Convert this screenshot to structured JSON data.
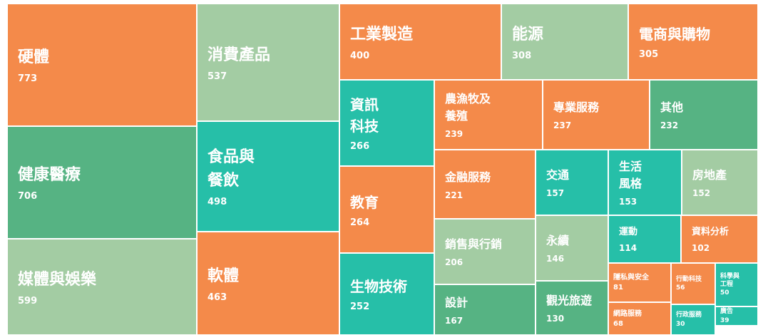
{
  "chart_data": {
    "type": "treemap",
    "categories": [
      "硬體",
      "健康醫療",
      "媒體與娛樂",
      "消費產品",
      "食品與餐飲",
      "軟體",
      "工業製造",
      "能源",
      "電商與購物",
      "資訊科技",
      "教育",
      "生物技術",
      "農漁牧及養殖",
      "專業服務",
      "其他",
      "金融服務",
      "銷售與行銷",
      "設計",
      "交通",
      "永續",
      "觀光旅遊",
      "生活風格",
      "房地產",
      "運動",
      "資料分析",
      "隱私與安全",
      "網路服務",
      "行動科技",
      "科學與工程",
      "行政服務",
      "廣告"
    ],
    "values": [
      773,
      706,
      599,
      537,
      498,
      463,
      400,
      308,
      305,
      266,
      264,
      252,
      239,
      237,
      232,
      221,
      206,
      167,
      157,
      146,
      130,
      153,
      152,
      114,
      102,
      81,
      68,
      56,
      50,
      30,
      39
    ],
    "colors": [
      "#f48a4a",
      "#56b383",
      "#a3cca3",
      "#a3cca3",
      "#26bfa8",
      "#f48a4a",
      "#f48a4a",
      "#a3cca3",
      "#f48a4a",
      "#26bfa8",
      "#f48a4a",
      "#26bfa8",
      "#f48a4a",
      "#f48a4a",
      "#56b383",
      "#f48a4a",
      "#a3cca3",
      "#56b383",
      "#26bfa8",
      "#a3cca3",
      "#56b383",
      "#26bfa8",
      "#a3cca3",
      "#26bfa8",
      "#f48a4a",
      "#f48a4a",
      "#f48a4a",
      "#f48a4a",
      "#26bfa8",
      "#26bfa8",
      "#26bfa8"
    ]
  }
}
